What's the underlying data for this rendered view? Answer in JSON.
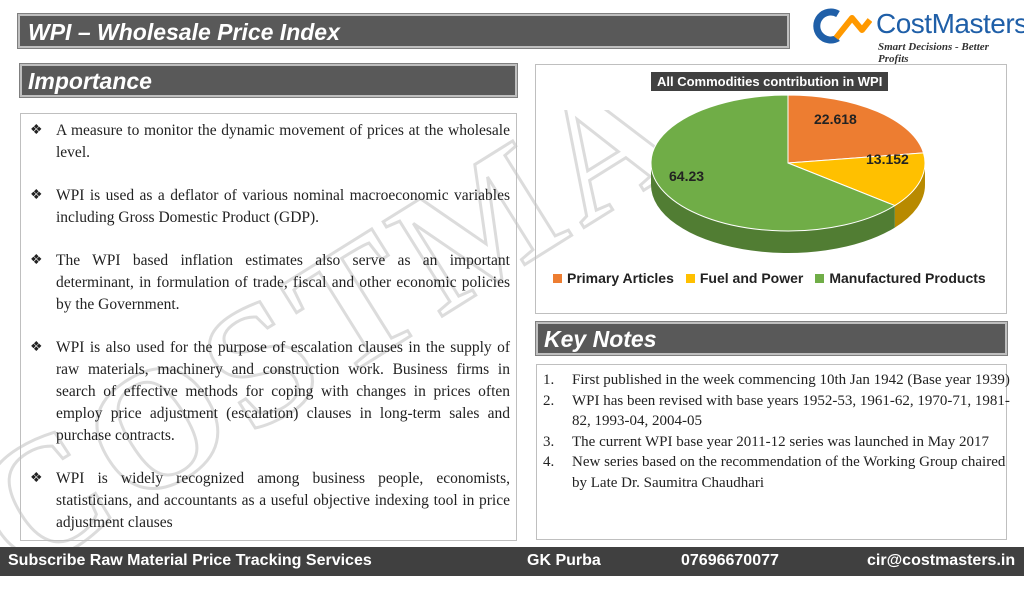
{
  "header": {
    "title": "WPI – Wholesale Price Index"
  },
  "logo": {
    "brand": "CostMasters",
    "tagline": "Smart Decisions - Better Profits"
  },
  "importance": {
    "heading": "Importance",
    "bullets": [
      "A measure to monitor the dynamic movement of prices at the wholesale level.",
      "WPI is used as a deflator of various nominal macroeconomic variables including Gross Domestic Product (GDP).",
      "The WPI based inflation estimates also serve as an important determinant, in formulation of trade, fiscal and other economic policies by the Government.",
      "WPI is also used for the purpose of escalation clauses in the supply of raw materials, machinery and construction work. Business firms in search of effective methods for coping with changes in prices often employ price adjustment (escalation) clauses in long-term sales and purchase contracts.",
      "WPI is widely recognized among business people, economists, statisticians, and accountants as a useful objective indexing tool in price adjustment clauses"
    ]
  },
  "chart_data": {
    "type": "pie",
    "title": "All Commodities contribution in WPI",
    "categories": [
      "Primary Articles",
      "Fuel and Power",
      "Manufactured Products"
    ],
    "values": [
      22.618,
      13.152,
      64.23
    ],
    "labels": [
      "22.618",
      "13.152",
      "64.23"
    ],
    "colors": [
      "#ed7d31",
      "#ffc000",
      "#70ad47"
    ],
    "legend_position": "bottom"
  },
  "key_notes": {
    "heading": "Key Notes",
    "items": [
      {
        "num": "1.",
        "text": "First published in the week commencing 10th Jan 1942 (Base year 1939)"
      },
      {
        "num": "2.",
        "text": "WPI has been revised with base years 1952-53, 1961-62, 1970-71, 1981-82, 1993-04, 2004-05"
      },
      {
        "num": "3.",
        "text": "The current WPI base year 2011-12 series was launched in May 2017"
      },
      {
        "num": "4.",
        "text": "New series based on the recommendation of the Working Group chaired by Late Dr. Saumitra Chaudhari"
      }
    ]
  },
  "footer": {
    "service": "Subscribe Raw Material Price Tracking Services",
    "name": "GK Purba",
    "phone": "07696670077",
    "email": "cir@costmasters.in"
  },
  "watermark": {
    "text": "COSTMASTERS"
  }
}
